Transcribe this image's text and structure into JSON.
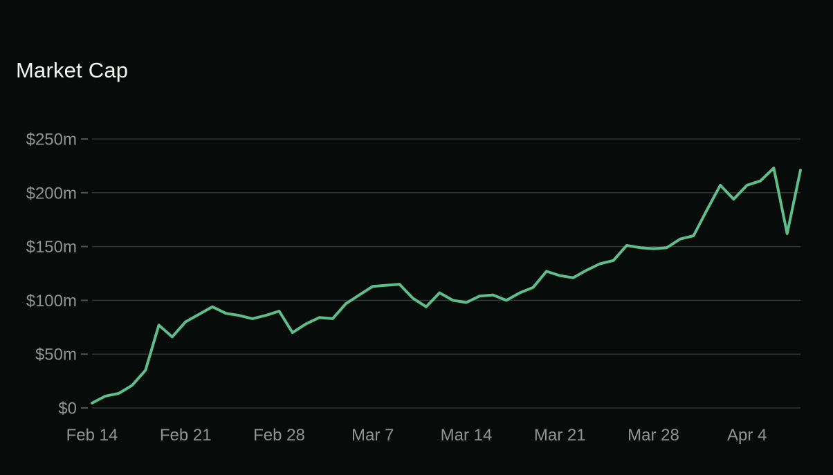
{
  "page": {
    "title": "Market Cap"
  },
  "colors": {
    "background": "#070b09",
    "line": "#5fbd8c",
    "grid": "#2e3432",
    "tick": "#4d534f",
    "axis_label": "#8f9492",
    "title": "#f4f6f4"
  },
  "chart_data": {
    "type": "line",
    "title": "Market Cap",
    "unit": "USD millions",
    "grid": "horizontal",
    "legend": "none",
    "ylim": [
      0,
      250
    ],
    "y_ticks_m": [
      0,
      50,
      100,
      150,
      200,
      250
    ],
    "y_tick_labels": [
      "$0",
      "$50m",
      "$100m",
      "$150m",
      "$200m",
      "$250m"
    ],
    "x_tick_labels": [
      "Feb 14",
      "Feb 21",
      "Feb 28",
      "Mar 7",
      "Mar 14",
      "Mar 21",
      "Mar 28",
      "Apr 4"
    ],
    "x": [
      "Feb 14",
      "Feb 15",
      "Feb 16",
      "Feb 17",
      "Feb 18",
      "Feb 19",
      "Feb 20",
      "Feb 21",
      "Feb 22",
      "Feb 23",
      "Feb 24",
      "Feb 25",
      "Feb 26",
      "Feb 27",
      "Feb 28",
      "Mar 1",
      "Mar 2",
      "Mar 3",
      "Mar 4",
      "Mar 5",
      "Mar 6",
      "Mar 7",
      "Mar 8",
      "Mar 9",
      "Mar 10",
      "Mar 11",
      "Mar 12",
      "Mar 13",
      "Mar 14",
      "Mar 15",
      "Mar 16",
      "Mar 17",
      "Mar 18",
      "Mar 19",
      "Mar 20",
      "Mar 21",
      "Mar 22",
      "Mar 23",
      "Mar 24",
      "Mar 25",
      "Mar 26",
      "Mar 27",
      "Mar 28",
      "Mar 29",
      "Mar 30",
      "Mar 31",
      "Apr 1",
      "Apr 2",
      "Apr 3",
      "Apr 4",
      "Apr 5",
      "Apr 6",
      "Apr 7",
      "Apr 8"
    ],
    "values": [
      4.5,
      11,
      13.5,
      21,
      35,
      77,
      66,
      80,
      87,
      94,
      88,
      86,
      83,
      86,
      90,
      70,
      78,
      84,
      83,
      97,
      105,
      113,
      114,
      115,
      102,
      94,
      107,
      100,
      98,
      104,
      105,
      100,
      107,
      112,
      127,
      123,
      121,
      128,
      134,
      137,
      151,
      149,
      148,
      149,
      157,
      160,
      184,
      207,
      194,
      207,
      211,
      223,
      162,
      221
    ]
  }
}
